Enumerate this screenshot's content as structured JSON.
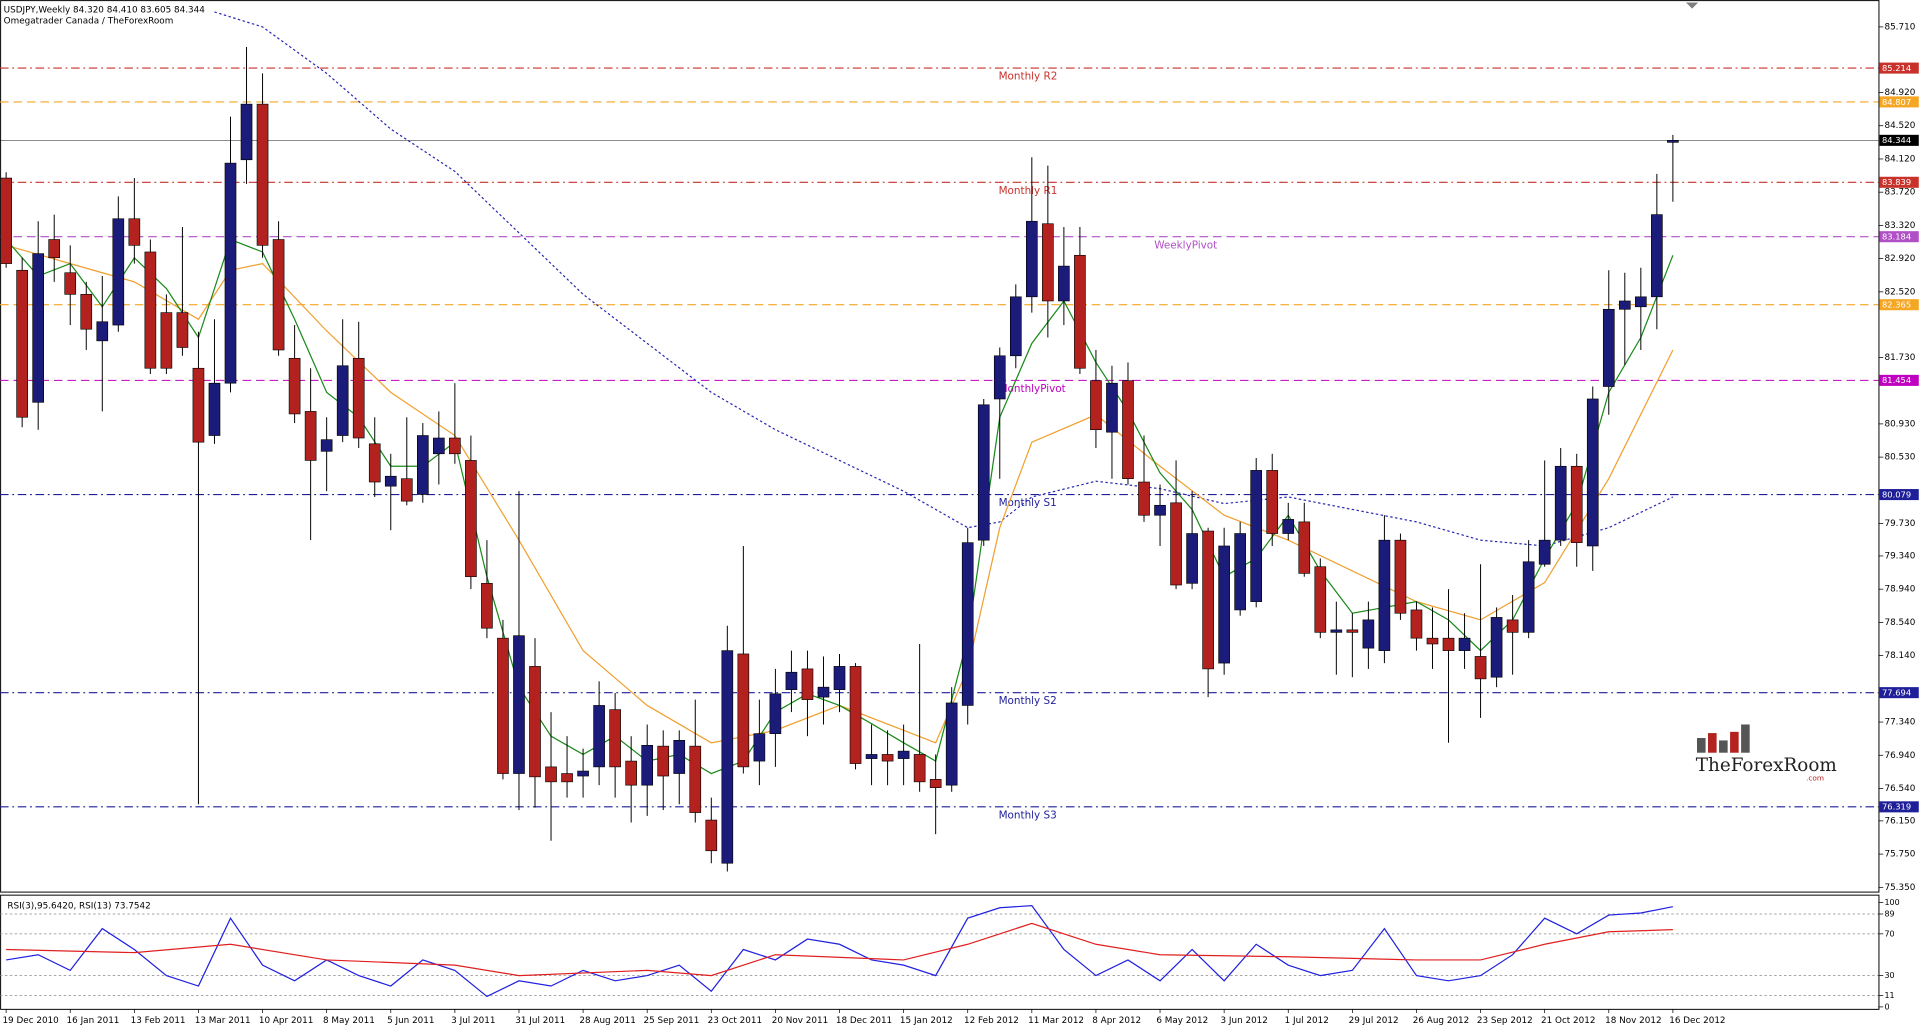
{
  "chart_data": [
    {
      "type": "candlestick",
      "title": "USDJPY,Weekly  84.320 84.410 83.605 84.344",
      "subtitle": "Omegatrader Canada / TheForexRoom",
      "watermark": "TheForexRoom",
      "watermark_suffix": ".com",
      "categories": [
        "19 Dec 2010",
        null,
        null,
        null,
        "16 Jan 2011",
        null,
        null,
        null,
        "13 Feb 2011",
        null,
        null,
        null,
        "13 Mar 2011",
        null,
        null,
        null,
        "10 Apr 2011",
        null,
        null,
        null,
        "8 May 2011",
        null,
        null,
        null,
        "5 Jun 2011",
        null,
        null,
        null,
        "3 Jul 2011",
        null,
        null,
        null,
        "31 Jul 2011",
        null,
        null,
        null,
        "28 Aug 2011",
        null,
        null,
        null,
        "25 Sep 2011",
        null,
        null,
        null,
        "23 Oct 2011",
        null,
        null,
        null,
        "20 Nov 2011",
        null,
        null,
        null,
        "18 Dec 2011",
        null,
        null,
        null,
        "15 Jan 2012",
        null,
        null,
        null,
        "12 Feb 2012",
        null,
        null,
        null,
        "11 Mar 2012",
        null,
        null,
        null,
        "8 Apr 2012",
        null,
        null,
        null,
        "6 May 2012",
        null,
        null,
        null,
        "3 Jun 2012",
        null,
        null,
        null,
        "1 Jul 2012",
        null,
        null,
        null,
        "29 Jul 2012",
        null,
        null,
        null,
        "26 Aug 2012",
        null,
        null,
        null,
        "23 Sep 2012",
        null,
        null,
        null,
        "21 Oct 2012",
        null,
        null,
        null,
        "18 Nov 2012",
        null,
        null,
        null,
        "16 Dec 2012"
      ],
      "open": [
        83.89,
        82.78,
        81.19,
        83.15,
        82.75,
        82.49,
        81.93,
        82.12,
        83.4,
        83.0,
        82.27,
        82.27,
        81.6,
        80.79,
        81.42,
        84.11,
        84.78,
        83.15,
        81.72,
        81.08,
        80.6,
        80.79,
        81.72,
        80.69,
        80.18,
        80.27,
        80.08,
        80.57,
        80.76,
        80.49,
        79.01,
        78.35,
        76.72,
        78.01,
        76.8,
        76.72,
        76.69,
        76.8,
        77.49,
        76.87,
        76.58,
        77.05,
        76.72,
        77.05,
        76.16,
        75.64,
        78.16,
        76.87,
        77.2,
        77.73,
        77.98,
        77.64,
        77.73,
        78.01,
        76.9,
        76.95,
        76.9,
        76.95,
        76.65,
        76.58,
        77.54,
        79.53,
        81.23,
        81.75,
        82.46,
        83.34,
        82.41,
        82.96,
        81.45,
        80.83,
        81.45,
        80.23,
        79.83,
        79.98,
        79.01,
        79.64,
        78.05,
        78.69,
        78.79,
        80.37,
        79.61,
        79.75,
        79.21,
        78.42,
        78.45,
        78.23,
        78.2,
        79.53,
        78.69,
        78.35,
        78.35,
        78.2,
        78.13,
        77.88,
        78.57,
        78.42,
        79.24,
        79.53,
        80.42,
        79.46,
        81.38,
        82.31,
        82.34,
        82.46,
        84.32
      ],
      "high": [
        83.96,
        82.93,
        83.37,
        83.45,
        83.08,
        82.64,
        82.71,
        83.67,
        83.89,
        83.15,
        82.49,
        83.3,
        82.04,
        82.19,
        84.63,
        85.47,
        85.15,
        83.37,
        82.12,
        81.6,
        81.01,
        82.19,
        82.16,
        81.01,
        80.57,
        81.01,
        80.94,
        81.08,
        81.42,
        80.79,
        79.53,
        78.57,
        80.12,
        78.35,
        77.46,
        77.17,
        77.02,
        77.83,
        77.69,
        77.17,
        77.31,
        77.24,
        77.24,
        77.61,
        76.43,
        78.5,
        79.46,
        77.61,
        77.98,
        78.2,
        78.2,
        78.13,
        78.16,
        78.05,
        77.31,
        77.24,
        77.31,
        78.28,
        76.95,
        77.76,
        79.68,
        81.23,
        81.85,
        82.61,
        84.14,
        84.04,
        83.3,
        83.3,
        81.82,
        81.63,
        81.67,
        80.79,
        80.2,
        80.49,
        80.12,
        79.68,
        79.68,
        79.75,
        80.52,
        80.57,
        79.98,
        79.98,
        79.31,
        78.79,
        78.65,
        78.79,
        79.83,
        79.61,
        78.79,
        78.72,
        78.94,
        78.65,
        79.24,
        78.72,
        78.87,
        79.53,
        80.49,
        80.64,
        80.57,
        81.38,
        82.78,
        82.75,
        82.81,
        83.94,
        84.41
      ],
      "low": [
        82.81,
        80.89,
        80.86,
        82.64,
        82.12,
        81.82,
        81.08,
        82.04,
        82.86,
        81.53,
        81.53,
        81.75,
        76.35,
        80.69,
        81.31,
        83.82,
        82.93,
        81.75,
        80.94,
        79.53,
        80.12,
        80.71,
        80.64,
        80.05,
        79.65,
        79.95,
        79.98,
        80.2,
        80.45,
        78.94,
        78.35,
        76.65,
        76.28,
        76.31,
        75.91,
        76.43,
        76.43,
        76.58,
        76.43,
        76.13,
        76.21,
        76.28,
        76.35,
        76.13,
        75.64,
        75.54,
        76.72,
        76.58,
        76.8,
        77.46,
        77.17,
        77.31,
        77.46,
        76.77,
        76.58,
        76.58,
        76.58,
        76.5,
        75.99,
        76.5,
        77.31,
        79.46,
        80.27,
        81.6,
        82.27,
        81.97,
        82.12,
        81.53,
        80.64,
        80.27,
        80.2,
        79.75,
        79.46,
        78.94,
        78.94,
        77.64,
        77.91,
        78.62,
        78.72,
        79.46,
        79.53,
        79.09,
        78.35,
        77.91,
        77.88,
        77.98,
        78.05,
        78.57,
        78.2,
        77.98,
        77.09,
        77.98,
        77.39,
        77.76,
        77.91,
        78.35,
        79.21,
        79.46,
        79.21,
        79.16,
        81.04,
        81.64,
        81.82,
        82.07,
        83.605
      ],
      "close": [
        82.86,
        81.01,
        82.98,
        82.93,
        82.49,
        82.07,
        82.16,
        83.4,
        83.08,
        81.6,
        81.6,
        81.85,
        80.71,
        81.42,
        84.07,
        84.78,
        83.08,
        81.82,
        81.05,
        80.49,
        80.74,
        81.63,
        80.76,
        80.23,
        80.3,
        80.0,
        80.79,
        80.76,
        80.57,
        79.09,
        78.47,
        76.72,
        78.38,
        76.68,
        76.62,
        76.62,
        76.75,
        77.54,
        76.8,
        76.58,
        77.06,
        76.69,
        77.12,
        76.25,
        75.79,
        78.2,
        76.8,
        77.2,
        77.68,
        77.94,
        77.61,
        77.76,
        78.01,
        76.84,
        76.95,
        76.87,
        76.99,
        76.62,
        76.55,
        77.57,
        79.5,
        81.16,
        81.75,
        82.46,
        83.37,
        82.41,
        82.83,
        81.6,
        80.86,
        81.42,
        80.27,
        79.83,
        79.95,
        78.99,
        79.61,
        77.98,
        79.46,
        79.61,
        80.37,
        79.61,
        79.78,
        79.13,
        78.42,
        78.45,
        78.42,
        78.57,
        79.53,
        78.65,
        78.35,
        78.28,
        78.2,
        78.35,
        77.86,
        78.6,
        78.42,
        79.27,
        79.53,
        80.42,
        79.5,
        81.23,
        82.31,
        82.41,
        82.46,
        83.45,
        84.344
      ],
      "up_color": "#1b1b7a",
      "down_color": "#b3221e",
      "ylim": [
        75.3,
        85.96
      ],
      "yticks": [
        {
          "value": 85.71,
          "label": "85.710"
        },
        {
          "value": 84.92,
          "label": "84.920"
        },
        {
          "value": 84.52,
          "label": "84.520"
        },
        {
          "value": 84.12,
          "label": "84.120"
        },
        {
          "value": 83.72,
          "label": "83.720"
        },
        {
          "value": 83.32,
          "label": "83.320"
        },
        {
          "value": 82.92,
          "label": "82.920"
        },
        {
          "value": 82.52,
          "label": "82.520"
        },
        {
          "value": 81.73,
          "label": "81.730"
        },
        {
          "value": 80.93,
          "label": "80.930"
        },
        {
          "value": 80.53,
          "label": "80.530"
        },
        {
          "value": 79.73,
          "label": "79.730"
        },
        {
          "value": 79.34,
          "label": "79.340"
        },
        {
          "value": 78.94,
          "label": "78.940"
        },
        {
          "value": 78.54,
          "label": "78.540"
        },
        {
          "value": 78.14,
          "label": "78.140"
        },
        {
          "value": 77.34,
          "label": "77.340"
        },
        {
          "value": 76.94,
          "label": "76.940"
        },
        {
          "value": 76.54,
          "label": "76.540"
        },
        {
          "value": 76.15,
          "label": "76.150"
        },
        {
          "value": 75.75,
          "label": "75.750"
        },
        {
          "value": 75.35,
          "label": "75.350"
        }
      ],
      "levels": [
        {
          "name": "Monthly R2",
          "value": 85.214,
          "color": "#c8322b",
          "style": "dashdot"
        },
        {
          "value": 84.807,
          "color": "#f5a623",
          "style": "dashed"
        },
        {
          "value": 84.344,
          "color": "#000000",
          "style": "solid"
        },
        {
          "name": "Monthly R1",
          "value": 83.839,
          "color": "#c8322b",
          "style": "dashdot"
        },
        {
          "name": "WeeklyPivot",
          "value": 83.184,
          "color": "#b04fc6",
          "style": "dashed"
        },
        {
          "value": 82.365,
          "color": "#f5a623",
          "style": "dashed"
        },
        {
          "name": "MonthlyPivot",
          "value": 81.454,
          "color": "#c000c0",
          "style": "dashed"
        },
        {
          "name": "Monthly S1",
          "value": 80.079,
          "color": "#1f1f99",
          "style": "dashdot"
        },
        {
          "name": "Monthly S2",
          "value": 77.694,
          "color": "#1f1f99",
          "style": "dashdot"
        },
        {
          "name": "Monthly S3",
          "value": 76.319,
          "color": "#1f1f99",
          "style": "dashdot"
        }
      ],
      "lines": [
        {
          "color": "#2a2ab0",
          "style": "dotted",
          "x": [
            13,
            16,
            20,
            24,
            28,
            32,
            36,
            40,
            44,
            48,
            52,
            56,
            60,
            62,
            64,
            68,
            72,
            76,
            80,
            84,
            88,
            92,
            96,
            100,
            104
          ],
          "values": [
            85.89,
            85.71,
            85.15,
            84.48,
            83.97,
            83.23,
            82.49,
            81.9,
            81.31,
            80.86,
            80.49,
            80.12,
            79.68,
            79.75,
            80.05,
            80.24,
            80.15,
            79.97,
            80.05,
            79.9,
            79.75,
            79.53,
            79.46,
            79.68,
            80.05
          ]
        },
        {
          "color": "#f0a030",
          "style": "solid",
          "x": [
            0,
            4,
            8,
            12,
            14,
            16,
            20,
            24,
            28,
            32,
            36,
            40,
            44,
            48,
            52,
            56,
            58,
            60,
            62,
            64,
            68,
            72,
            76,
            80,
            84,
            88,
            92,
            96,
            100,
            104
          ],
          "values": [
            83.08,
            82.86,
            82.64,
            82.19,
            82.78,
            82.86,
            82.05,
            81.31,
            80.79,
            79.53,
            78.2,
            77.54,
            77.09,
            77.24,
            77.54,
            77.24,
            77.09,
            77.98,
            79.68,
            80.71,
            81.04,
            80.42,
            79.83,
            79.53,
            79.16,
            78.79,
            78.57,
            79.02,
            80.27,
            81.82
          ]
        },
        {
          "color": "#1a8a1a",
          "style": "solid",
          "x": [
            0,
            2,
            4,
            6,
            8,
            10,
            12,
            14,
            16,
            18,
            20,
            22,
            24,
            26,
            28,
            30,
            32,
            34,
            36,
            38,
            40,
            42,
            44,
            46,
            48,
            50,
            52,
            54,
            56,
            58,
            60,
            62,
            64,
            66,
            68,
            70,
            72,
            74,
            76,
            78,
            80,
            82,
            84,
            86,
            88,
            90,
            92,
            94,
            96,
            98,
            100,
            102,
            104
          ],
          "values": [
            83.15,
            82.71,
            82.86,
            82.34,
            82.93,
            82.56,
            81.97,
            83.15,
            83.0,
            82.19,
            81.31,
            81.01,
            80.42,
            80.42,
            80.71,
            79.09,
            77.76,
            77.17,
            76.95,
            77.17,
            76.87,
            76.95,
            76.72,
            76.87,
            77.46,
            77.68,
            77.54,
            77.32,
            77.09,
            76.87,
            78.35,
            81.01,
            81.9,
            82.41,
            81.67,
            81.08,
            80.34,
            79.9,
            79.09,
            79.31,
            79.83,
            79.16,
            78.65,
            78.72,
            78.79,
            78.57,
            78.2,
            78.57,
            79.31,
            79.97,
            81.31,
            81.97,
            82.96
          ]
        }
      ]
    },
    {
      "type": "line",
      "title": "RSI(3),95.6420, RSI(13) 73.7542",
      "ylim": [
        0,
        100
      ],
      "yticks": [
        0,
        11,
        30,
        70,
        89,
        100
      ],
      "levels": [
        11,
        30,
        70,
        89
      ],
      "series": [
        {
          "color": "#2020e0",
          "x": [
            0,
            2,
            4,
            6,
            8,
            10,
            12,
            14,
            16,
            18,
            20,
            22,
            24,
            26,
            28,
            30,
            32,
            34,
            36,
            38,
            40,
            42,
            44,
            46,
            48,
            50,
            52,
            54,
            56,
            58,
            60,
            62,
            64,
            66,
            68,
            70,
            72,
            74,
            76,
            78,
            80,
            82,
            84,
            86,
            88,
            90,
            92,
            94,
            96,
            98,
            100,
            102,
            104
          ],
          "values": [
            45,
            50,
            35,
            75,
            55,
            30,
            20,
            85,
            40,
            25,
            45,
            30,
            20,
            45,
            35,
            10,
            25,
            20,
            35,
            25,
            30,
            40,
            15,
            55,
            45,
            65,
            60,
            45,
            40,
            30,
            85,
            95,
            97,
            55,
            30,
            45,
            25,
            55,
            25,
            60,
            40,
            30,
            35,
            75,
            30,
            25,
            30,
            50,
            85,
            70,
            88,
            90,
            96
          ]
        },
        {
          "color": "#e02020",
          "x": [
            0,
            8,
            14,
            20,
            28,
            32,
            40,
            44,
            48,
            56,
            60,
            64,
            68,
            72,
            80,
            88,
            92,
            96,
            100,
            104
          ],
          "values": [
            55,
            52,
            60,
            45,
            40,
            30,
            35,
            30,
            50,
            45,
            60,
            80,
            60,
            50,
            48,
            45,
            45,
            60,
            72,
            74
          ]
        }
      ]
    }
  ]
}
